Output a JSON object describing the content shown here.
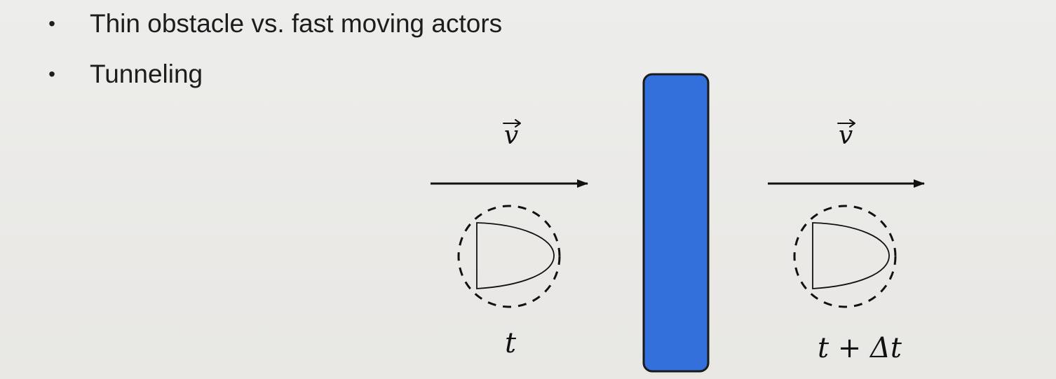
{
  "bullets": [
    "Thin obstacle vs. fast moving actors",
    "Tunneling"
  ],
  "diagram": {
    "velocity_label": "v",
    "time_before_label": "t",
    "time_after_label": "t + Δt",
    "obstacle_color": "#3370dc",
    "obstacle_stroke": "#1a1a1a"
  }
}
